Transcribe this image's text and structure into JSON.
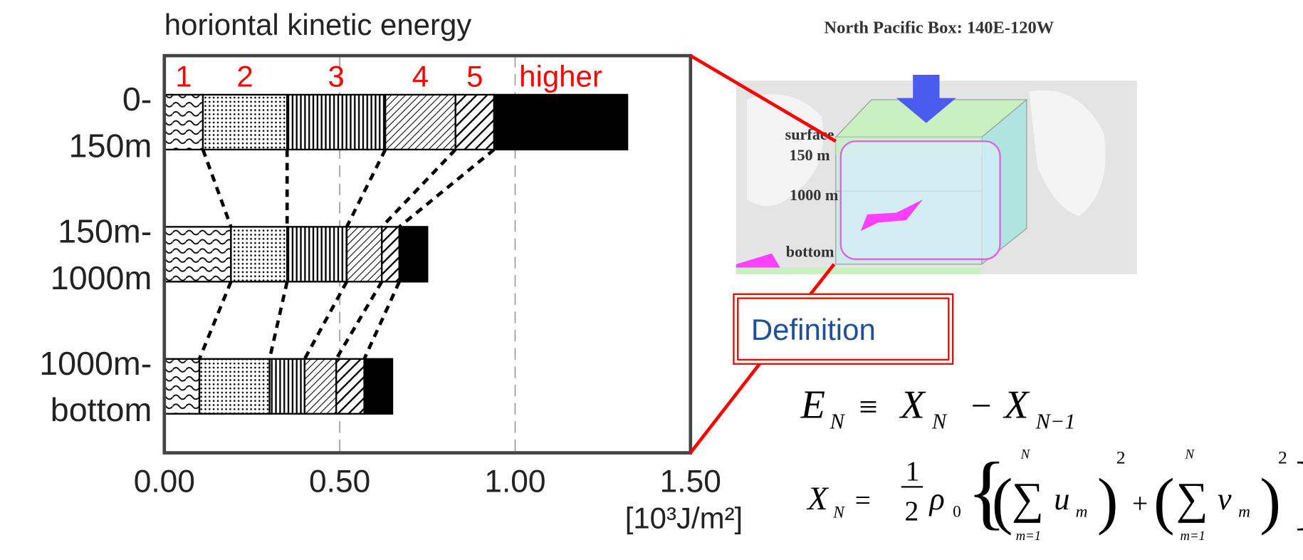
{
  "chart_data": {
    "type": "stacked-barh",
    "title": "horiontal kinetic energy",
    "categories": [
      [
        "0-",
        "150m"
      ],
      [
        "150m-",
        "1000m"
      ],
      [
        "1000m-",
        "bottom"
      ]
    ],
    "series": [
      {
        "name": "1",
        "pattern": "wave",
        "values": [
          0.11,
          0.19,
          0.1
        ]
      },
      {
        "name": "2",
        "pattern": "dots",
        "values": [
          0.24,
          0.16,
          0.2
        ]
      },
      {
        "name": "3",
        "pattern": "vlines",
        "values": [
          0.28,
          0.17,
          0.1
        ]
      },
      {
        "name": "4",
        "pattern": "hatch-thin",
        "values": [
          0.2,
          0.1,
          0.09
        ]
      },
      {
        "name": "5",
        "pattern": "hatch-thick",
        "values": [
          0.11,
          0.05,
          0.08
        ]
      },
      {
        "name": "higher",
        "pattern": "solid",
        "values": [
          0.38,
          0.08,
          0.08
        ]
      }
    ],
    "legend_color": "#ff0000",
    "xlim": [
      0,
      1.5
    ],
    "xticks": [
      {
        "value": 0,
        "label": "0.00"
      },
      {
        "value": 0.5,
        "label": "0.50"
      },
      {
        "value": 1,
        "label": "1.00"
      },
      {
        "value": 1.5,
        "label": "1.50"
      }
    ],
    "grid": true,
    "x_label": "[10³J/m²]"
  },
  "diagram": {
    "title": "North Pacific Box: 140E-120W",
    "labels": [
      "surface",
      "150 m",
      "1000 m",
      "bottom"
    ],
    "definition": "Definition",
    "equation_1": [
      "E",
      "N",
      "≡",
      "X",
      "N",
      "−",
      "X",
      "N−1"
    ],
    "equation_2": [
      "X",
      "N",
      "=",
      "1",
      "2",
      "ρ",
      "0",
      "{",
      "(",
      "N",
      "∑",
      "m=1",
      "u",
      "m",
      ")",
      "2",
      "+",
      "(",
      "N",
      "∑",
      "m=1",
      "v",
      "m",
      ")",
      "2",
      "}"
    ]
  }
}
